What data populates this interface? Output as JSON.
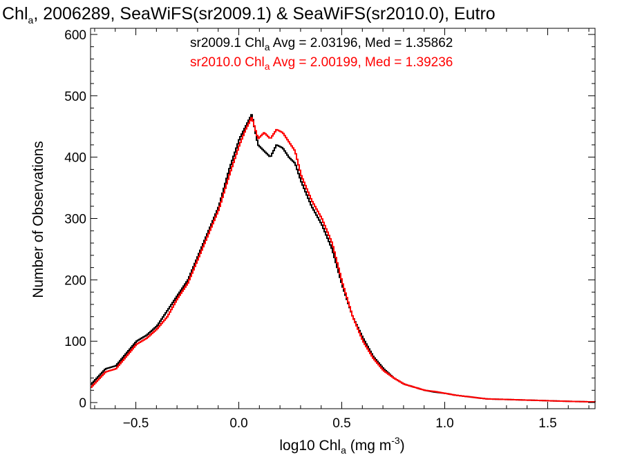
{
  "chart_data": {
    "type": "line",
    "title": {
      "pre": "Chl",
      "sub": "a",
      "post": ", 2006289, SeaWiFS(sr2009.1) & SeaWiFS(sr2010.0), Eutro"
    },
    "xlabel": {
      "pre": "log10 Chl",
      "sub": "a",
      "post": " (mg m",
      "sup": "-3",
      "end": ")"
    },
    "ylabel": "Number of Observations",
    "xlim": [
      -0.72,
      1.73
    ],
    "ylim": [
      -10,
      610
    ],
    "xticks": [
      -0.5,
      0.0,
      0.5,
      1.0,
      1.5
    ],
    "xtick_labels": [
      "−0.5",
      "0.0",
      "0.5",
      "1.0",
      "1.5"
    ],
    "yticks": [
      0,
      100,
      200,
      300,
      400,
      500,
      600
    ],
    "ytick_labels": [
      "0",
      "100",
      "200",
      "300",
      "400",
      "500",
      "600"
    ],
    "step_style": "histogram",
    "annotations": [
      {
        "pre": "sr2009.1 Chl",
        "sub": "a",
        "post": " Avg = 2.03196, Med = 1.35862",
        "color": "#000000"
      },
      {
        "pre": "sr2010.0 Chl",
        "sub": "a",
        "post": " Avg = 2.00199, Med = 1.39236",
        "color": "#ff0000"
      }
    ],
    "series": [
      {
        "color": "#000000",
        "x": [
          -0.72,
          -0.65,
          -0.6,
          -0.55,
          -0.5,
          -0.45,
          -0.4,
          -0.35,
          -0.3,
          -0.25,
          -0.2,
          -0.15,
          -0.1,
          -0.05,
          0.0,
          0.03,
          0.06,
          0.09,
          0.12,
          0.15,
          0.18,
          0.21,
          0.24,
          0.27,
          0.3,
          0.35,
          0.4,
          0.45,
          0.5,
          0.55,
          0.6,
          0.65,
          0.7,
          0.75,
          0.8,
          0.85,
          0.9,
          0.95,
          1.0,
          1.05,
          1.1,
          1.15,
          1.2,
          1.3,
          1.4,
          1.5,
          1.6,
          1.73
        ],
        "y": [
          30,
          55,
          60,
          80,
          100,
          110,
          125,
          150,
          175,
          200,
          240,
          280,
          320,
          380,
          430,
          450,
          470,
          420,
          410,
          400,
          420,
          415,
          400,
          390,
          360,
          320,
          290,
          250,
          190,
          140,
          105,
          75,
          55,
          40,
          30,
          25,
          20,
          17,
          15,
          12,
          10,
          8,
          6,
          5,
          4,
          3,
          2,
          1
        ]
      },
      {
        "color": "#ff0000",
        "x": [
          -0.72,
          -0.65,
          -0.6,
          -0.55,
          -0.5,
          -0.45,
          -0.4,
          -0.35,
          -0.3,
          -0.25,
          -0.2,
          -0.15,
          -0.1,
          -0.05,
          0.0,
          0.03,
          0.06,
          0.09,
          0.12,
          0.15,
          0.18,
          0.21,
          0.24,
          0.27,
          0.3,
          0.35,
          0.4,
          0.45,
          0.5,
          0.55,
          0.6,
          0.65,
          0.7,
          0.75,
          0.8,
          0.85,
          0.9,
          0.95,
          1.0,
          1.05,
          1.1,
          1.15,
          1.2,
          1.3,
          1.4,
          1.5,
          1.6,
          1.73
        ],
        "y": [
          25,
          50,
          55,
          75,
          95,
          105,
          120,
          140,
          170,
          195,
          235,
          275,
          315,
          370,
          420,
          445,
          465,
          430,
          440,
          430,
          445,
          440,
          425,
          410,
          370,
          330,
          300,
          260,
          195,
          140,
          100,
          72,
          52,
          40,
          30,
          25,
          20,
          18,
          15,
          12,
          10,
          8,
          6,
          5,
          4,
          3,
          2,
          1
        ]
      }
    ]
  }
}
